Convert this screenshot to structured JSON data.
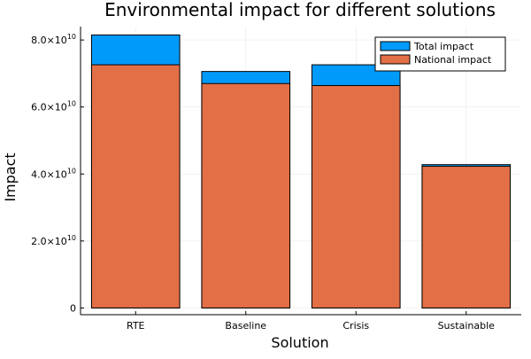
{
  "chart_data": {
    "type": "bar",
    "stacked_overlay": true,
    "title": "Environmental impact for different solutions",
    "xlabel": "Solution",
    "ylabel": "Impact",
    "categories": [
      "RTE",
      "Baseline",
      "Crisis",
      "Sustainable"
    ],
    "series": [
      {
        "name": "Total impact",
        "color": "#009AFA",
        "values": [
          81500000000,
          70600000000,
          72600000000,
          42800000000
        ]
      },
      {
        "name": "National impact",
        "color": "#E26F46",
        "values": [
          72600000000,
          67000000000,
          66400000000,
          42300000000
        ]
      }
    ],
    "ylim": [
      -2000000000,
      84000000000
    ],
    "yticks": [
      {
        "value": 0,
        "mant": "0",
        "exp": ""
      },
      {
        "value": 20000000000,
        "mant": "2.0×10",
        "exp": "10"
      },
      {
        "value": 40000000000,
        "mant": "4.0×10",
        "exp": "10"
      },
      {
        "value": 60000000000,
        "mant": "6.0×10",
        "exp": "10"
      },
      {
        "value": 80000000000,
        "mant": "8.0×10",
        "exp": "10"
      }
    ],
    "grid": true,
    "legend_position": "top-right"
  }
}
